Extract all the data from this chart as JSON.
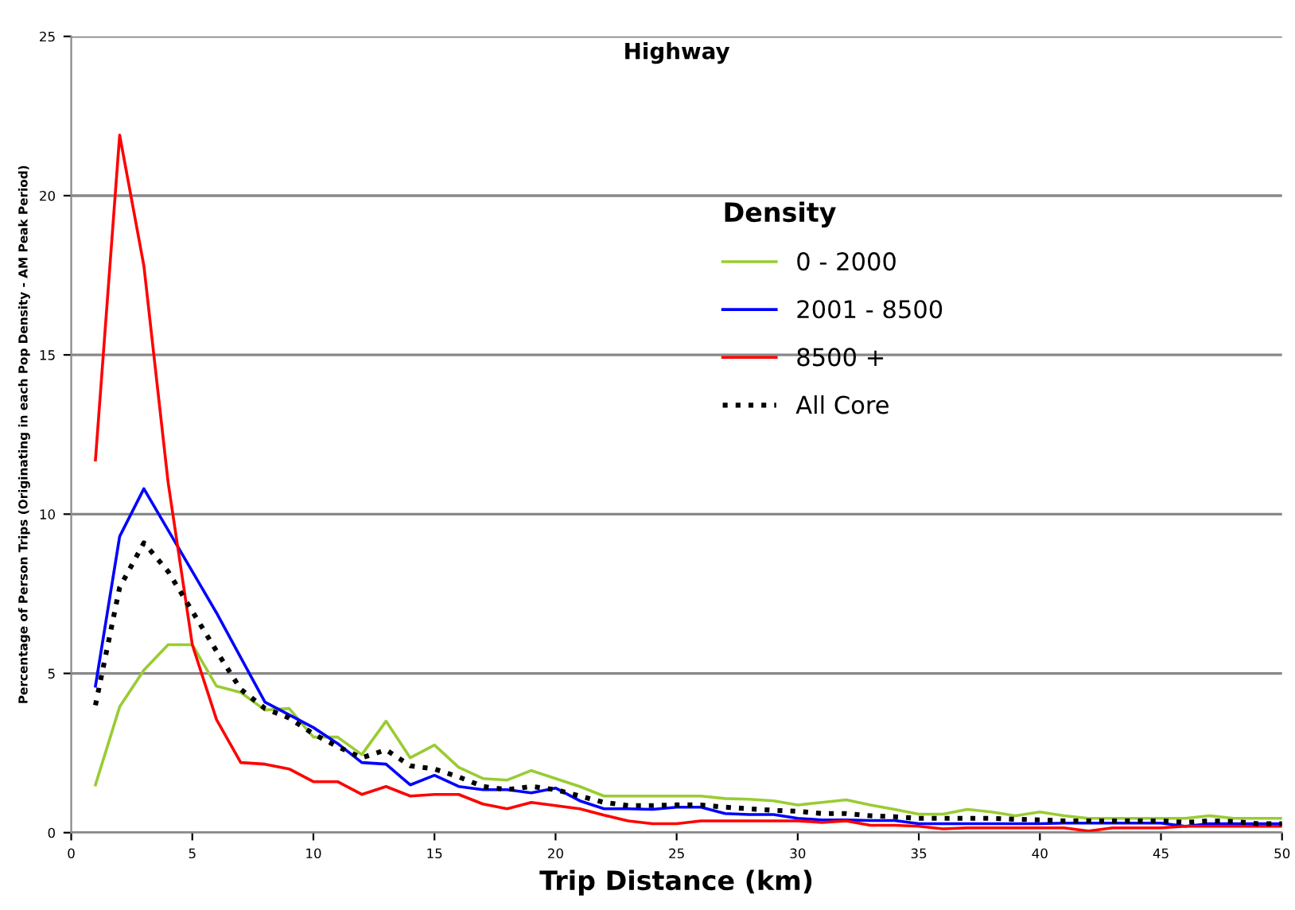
{
  "chart_data": {
    "type": "line",
    "title": "Highway",
    "xlabel": "Trip Distance (km)",
    "ylabel": "Percentage of Person Trips (Originating in each Pop Density - AM Peak Period)",
    "legend_title": "Density",
    "legend": "top right",
    "grid": "y",
    "xlim": [
      0,
      50
    ],
    "ylim": [
      0,
      25
    ],
    "xticks": [
      0,
      5,
      10,
      15,
      20,
      25,
      30,
      35,
      40,
      45,
      50
    ],
    "yticks": [
      0,
      5,
      10,
      15,
      20,
      25
    ],
    "x": [
      1,
      2,
      3,
      4,
      5,
      6,
      7,
      8,
      9,
      10,
      11,
      12,
      13,
      14,
      15,
      16,
      17,
      18,
      19,
      20,
      21,
      22,
      23,
      24,
      25,
      26,
      27,
      28,
      29,
      30,
      31,
      32,
      33,
      34,
      35,
      36,
      37,
      38,
      39,
      40,
      41,
      42,
      43,
      44,
      45,
      46,
      47,
      48,
      49,
      50
    ],
    "series": [
      {
        "name": "0 - 2000",
        "color": "#99cc33",
        "line_style": "solid",
        "values": [
          1.5,
          3.95,
          5.1,
          5.9,
          5.9,
          4.6,
          4.4,
          3.85,
          3.9,
          3.0,
          3.0,
          2.45,
          3.5,
          2.35,
          2.75,
          2.05,
          1.7,
          1.65,
          1.95,
          1.7,
          1.45,
          1.15,
          1.15,
          1.15,
          1.15,
          1.15,
          1.07,
          1.05,
          1.0,
          0.87,
          0.95,
          1.03,
          0.87,
          0.73,
          0.58,
          0.58,
          0.73,
          0.65,
          0.53,
          0.65,
          0.53,
          0.45,
          0.45,
          0.45,
          0.45,
          0.45,
          0.53,
          0.45,
          0.45,
          0.45
        ]
      },
      {
        "name": "2001 - 8500",
        "color": "#0000ff",
        "line_style": "solid",
        "values": [
          4.6,
          9.3,
          10.8,
          9.5,
          8.2,
          6.9,
          5.5,
          4.1,
          3.7,
          3.3,
          2.8,
          2.2,
          2.15,
          1.5,
          1.8,
          1.45,
          1.35,
          1.35,
          1.25,
          1.4,
          1.0,
          0.75,
          0.75,
          0.73,
          0.8,
          0.8,
          0.6,
          0.57,
          0.57,
          0.45,
          0.4,
          0.4,
          0.38,
          0.38,
          0.28,
          0.28,
          0.28,
          0.28,
          0.28,
          0.28,
          0.3,
          0.3,
          0.3,
          0.3,
          0.3,
          0.2,
          0.28,
          0.28,
          0.28,
          0.28
        ]
      },
      {
        "name": "8500 +",
        "color": "#ff0000",
        "line_style": "solid",
        "values": [
          11.7,
          21.9,
          17.8,
          11.0,
          5.9,
          3.55,
          2.2,
          2.15,
          2.0,
          1.6,
          1.6,
          1.2,
          1.45,
          1.15,
          1.2,
          1.2,
          0.9,
          0.75,
          0.95,
          0.85,
          0.75,
          0.55,
          0.37,
          0.28,
          0.28,
          0.37,
          0.37,
          0.37,
          0.37,
          0.37,
          0.32,
          0.37,
          0.23,
          0.23,
          0.2,
          0.12,
          0.15,
          0.15,
          0.15,
          0.15,
          0.15,
          0.05,
          0.15,
          0.15,
          0.15,
          0.2,
          0.2,
          0.2,
          0.2,
          0.2
        ]
      },
      {
        "name": "All Core",
        "color": "#000000",
        "line_style": "dotted",
        "values": [
          4.0,
          7.7,
          9.1,
          8.2,
          6.95,
          5.7,
          4.5,
          3.9,
          3.6,
          3.1,
          2.7,
          2.35,
          2.6,
          2.1,
          2.0,
          1.75,
          1.45,
          1.35,
          1.45,
          1.35,
          1.15,
          0.95,
          0.85,
          0.85,
          0.87,
          0.87,
          0.8,
          0.75,
          0.7,
          0.67,
          0.6,
          0.6,
          0.53,
          0.5,
          0.45,
          0.45,
          0.45,
          0.45,
          0.42,
          0.4,
          0.37,
          0.37,
          0.37,
          0.37,
          0.37,
          0.32,
          0.37,
          0.35,
          0.28,
          0.28
        ]
      }
    ]
  }
}
